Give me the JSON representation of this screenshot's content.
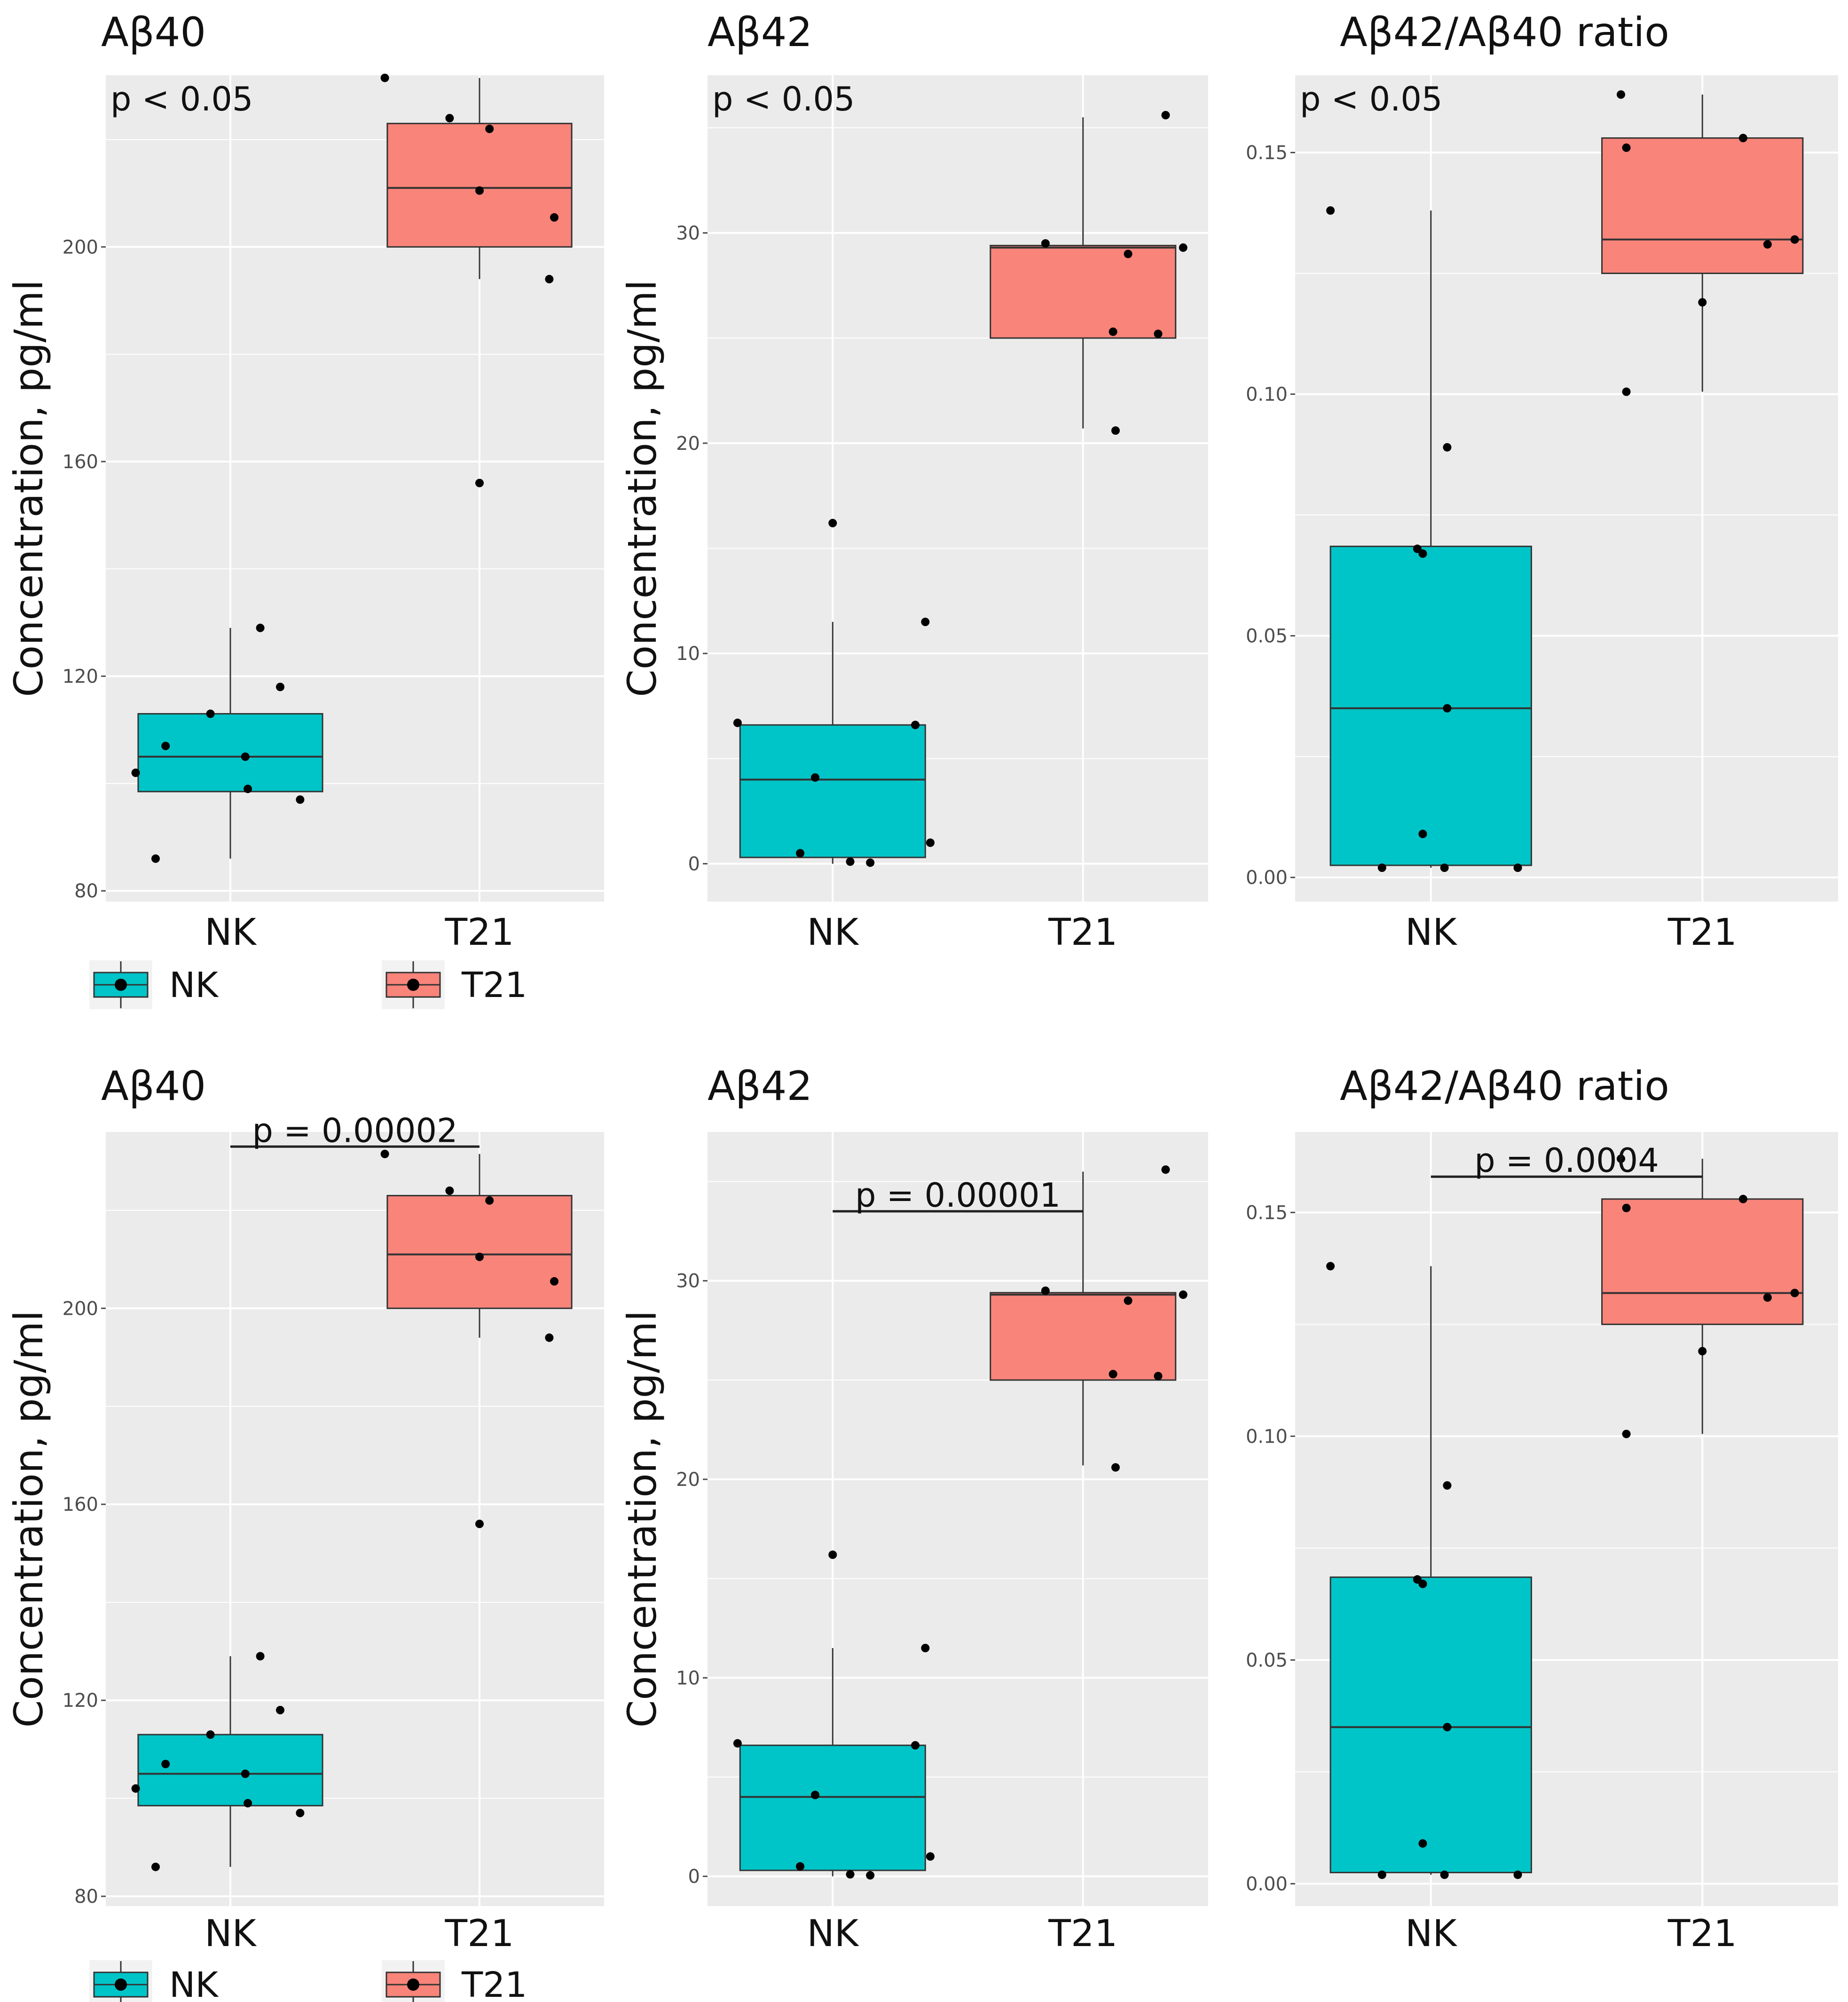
{
  "groups": [
    "NK",
    "T21"
  ],
  "colors": {
    "NK": "#00C5C8",
    "T21": "#F8847A",
    "panel": "#EBEBEB",
    "grid": "#FFFFFF",
    "point": "#000000",
    "line": "#333333"
  },
  "ylabel": "Concentration, pg/ml",
  "legend": [
    {
      "label": "NK",
      "color": "#00C5C8"
    },
    {
      "label": "T21",
      "color": "#F8847A"
    }
  ],
  "chart_data": [
    {
      "type": "boxplot",
      "row": 0,
      "title": "Aβ40",
      "ylabel": "Concentration, pg/ml",
      "annotation": {
        "text": "p < 0.05",
        "style": "corner"
      },
      "ylim": [
        78,
        232
      ],
      "yticks": [
        80,
        120,
        160,
        200
      ],
      "ytick_labels": [
        "80",
        "120",
        "160",
        "200"
      ],
      "categories": [
        "NK",
        "T21"
      ],
      "boxes": [
        {
          "group": "NK",
          "q1": 98.5,
          "median": 105,
          "q3": 113,
          "whisker_low": 86,
          "whisker_high": 129
        },
        {
          "group": "T21",
          "q1": 200,
          "median": 211,
          "q3": 223,
          "whisker_low": 194,
          "whisker_high": 231.5
        }
      ],
      "points": [
        {
          "group": "NK",
          "jitter": -0.38,
          "value": 102
        },
        {
          "group": "NK",
          "jitter": -0.3,
          "value": 86
        },
        {
          "group": "NK",
          "jitter": -0.26,
          "value": 107
        },
        {
          "group": "NK",
          "jitter": -0.08,
          "value": 113
        },
        {
          "group": "NK",
          "jitter": 0.06,
          "value": 105
        },
        {
          "group": "NK",
          "jitter": 0.07,
          "value": 99
        },
        {
          "group": "NK",
          "jitter": 0.12,
          "value": 129
        },
        {
          "group": "NK",
          "jitter": 0.2,
          "value": 118
        },
        {
          "group": "NK",
          "jitter": 0.28,
          "value": 97
        },
        {
          "group": "T21",
          "jitter": -0.38,
          "value": 231.5
        },
        {
          "group": "T21",
          "jitter": -0.12,
          "value": 224
        },
        {
          "group": "T21",
          "jitter": 0.0,
          "value": 210.5
        },
        {
          "group": "T21",
          "jitter": 0.0,
          "value": 156
        },
        {
          "group": "T21",
          "jitter": 0.04,
          "value": 222
        },
        {
          "group": "T21",
          "jitter": 0.28,
          "value": 194
        },
        {
          "group": "T21",
          "jitter": 0.3,
          "value": 205.5
        }
      ]
    },
    {
      "type": "boxplot",
      "row": 0,
      "title": "Aβ42",
      "ylabel": "Concentration, pg/ml",
      "annotation": {
        "text": "p < 0.05",
        "style": "corner"
      },
      "ylim": [
        -1.8,
        37.5
      ],
      "yticks": [
        0,
        10,
        20,
        30
      ],
      "ytick_labels": [
        "0",
        "10",
        "20",
        "30"
      ],
      "categories": [
        "NK",
        "T21"
      ],
      "boxes": [
        {
          "group": "NK",
          "q1": 0.3,
          "median": 4.0,
          "q3": 6.6,
          "whisker_low": 0,
          "whisker_high": 11.5
        },
        {
          "group": "T21",
          "q1": 25.0,
          "median": 29.3,
          "q3": 29.4,
          "whisker_low": 20.7,
          "whisker_high": 35.5
        }
      ],
      "points": [
        {
          "group": "NK",
          "jitter": -0.38,
          "value": 6.7
        },
        {
          "group": "NK",
          "jitter": -0.13,
          "value": 0.5
        },
        {
          "group": "NK",
          "jitter": -0.07,
          "value": 4.1
        },
        {
          "group": "NK",
          "jitter": 0.0,
          "value": 16.2
        },
        {
          "group": "NK",
          "jitter": 0.07,
          "value": 0.1
        },
        {
          "group": "NK",
          "jitter": 0.15,
          "value": 0.05
        },
        {
          "group": "NK",
          "jitter": 0.33,
          "value": 6.6
        },
        {
          "group": "NK",
          "jitter": 0.37,
          "value": 11.5
        },
        {
          "group": "NK",
          "jitter": 0.39,
          "value": 1.0
        },
        {
          "group": "T21",
          "jitter": -0.15,
          "value": 29.5
        },
        {
          "group": "T21",
          "jitter": 0.12,
          "value": 25.3
        },
        {
          "group": "T21",
          "jitter": 0.13,
          "value": 20.6
        },
        {
          "group": "T21",
          "jitter": 0.18,
          "value": 29.0
        },
        {
          "group": "T21",
          "jitter": 0.3,
          "value": 25.2
        },
        {
          "group": "T21",
          "jitter": 0.33,
          "value": 35.6
        },
        {
          "group": "T21",
          "jitter": 0.4,
          "value": 29.3
        }
      ]
    },
    {
      "type": "boxplot",
      "row": 0,
      "title": "Aβ42/Aβ40 ratio",
      "ylabel": "",
      "annotation": {
        "text": "p < 0.05",
        "style": "corner"
      },
      "ylim": [
        -0.005,
        0.166
      ],
      "yticks": [
        0.0,
        0.05,
        0.1,
        0.15
      ],
      "ytick_labels": [
        "0.00",
        "0.05",
        "0.10",
        "0.15"
      ],
      "categories": [
        "NK",
        "T21"
      ],
      "boxes": [
        {
          "group": "NK",
          "q1": 0.0025,
          "median": 0.035,
          "q3": 0.0685,
          "whisker_low": 0.002,
          "whisker_high": 0.138
        },
        {
          "group": "T21",
          "q1": 0.125,
          "median": 0.132,
          "q3": 0.153,
          "whisker_low": 0.1005,
          "whisker_high": 0.162
        }
      ],
      "points": [
        {
          "group": "NK",
          "jitter": -0.37,
          "value": 0.138
        },
        {
          "group": "NK",
          "jitter": -0.18,
          "value": 0.002
        },
        {
          "group": "NK",
          "jitter": -0.05,
          "value": 0.068
        },
        {
          "group": "NK",
          "jitter": -0.03,
          "value": 0.067
        },
        {
          "group": "NK",
          "jitter": -0.03,
          "value": 0.009
        },
        {
          "group": "NK",
          "jitter": 0.05,
          "value": 0.002
        },
        {
          "group": "NK",
          "jitter": 0.06,
          "value": 0.089
        },
        {
          "group": "NK",
          "jitter": 0.06,
          "value": 0.035
        },
        {
          "group": "NK",
          "jitter": 0.32,
          "value": 0.002
        },
        {
          "group": "T21",
          "jitter": -0.3,
          "value": 0.162
        },
        {
          "group": "T21",
          "jitter": -0.28,
          "value": 0.1005
        },
        {
          "group": "T21",
          "jitter": -0.28,
          "value": 0.151
        },
        {
          "group": "T21",
          "jitter": 0.0,
          "value": 0.119
        },
        {
          "group": "T21",
          "jitter": 0.15,
          "value": 0.153
        },
        {
          "group": "T21",
          "jitter": 0.24,
          "value": 0.131
        },
        {
          "group": "T21",
          "jitter": 0.34,
          "value": 0.132
        }
      ]
    },
    {
      "type": "boxplot",
      "row": 1,
      "title": "Aβ40",
      "ylabel": "Concentration, pg/ml",
      "annotation": {
        "text": "p = 0.00002",
        "style": "bracket",
        "level": 233
      },
      "ylim": [
        78,
        236
      ],
      "yticks": [
        80,
        120,
        160,
        200
      ],
      "ytick_labels": [
        "80",
        "120",
        "160",
        "200"
      ],
      "categories": [
        "NK",
        "T21"
      ],
      "boxes": [
        {
          "group": "NK",
          "q1": 98.5,
          "median": 105,
          "q3": 113,
          "whisker_low": 86,
          "whisker_high": 129
        },
        {
          "group": "T21",
          "q1": 200,
          "median": 211,
          "q3": 223,
          "whisker_low": 194,
          "whisker_high": 231.5
        }
      ],
      "points": [
        {
          "group": "NK",
          "jitter": -0.38,
          "value": 102
        },
        {
          "group": "NK",
          "jitter": -0.3,
          "value": 86
        },
        {
          "group": "NK",
          "jitter": -0.26,
          "value": 107
        },
        {
          "group": "NK",
          "jitter": -0.08,
          "value": 113
        },
        {
          "group": "NK",
          "jitter": 0.06,
          "value": 105
        },
        {
          "group": "NK",
          "jitter": 0.07,
          "value": 99
        },
        {
          "group": "NK",
          "jitter": 0.12,
          "value": 129
        },
        {
          "group": "NK",
          "jitter": 0.2,
          "value": 118
        },
        {
          "group": "NK",
          "jitter": 0.28,
          "value": 97
        },
        {
          "group": "T21",
          "jitter": -0.38,
          "value": 231.5
        },
        {
          "group": "T21",
          "jitter": -0.12,
          "value": 224
        },
        {
          "group": "T21",
          "jitter": 0.0,
          "value": 210.5
        },
        {
          "group": "T21",
          "jitter": 0.0,
          "value": 156
        },
        {
          "group": "T21",
          "jitter": 0.04,
          "value": 222
        },
        {
          "group": "T21",
          "jitter": 0.28,
          "value": 194
        },
        {
          "group": "T21",
          "jitter": 0.3,
          "value": 205.5
        }
      ]
    },
    {
      "type": "boxplot",
      "row": 1,
      "title": "Aβ42",
      "ylabel": "Concentration, pg/ml",
      "annotation": {
        "text": "p = 0.00001",
        "style": "bracket",
        "level": 33.5
      },
      "ylim": [
        -1.5,
        37.5
      ],
      "yticks": [
        0,
        10,
        20,
        30
      ],
      "ytick_labels": [
        "0",
        "10",
        "20",
        "30"
      ],
      "categories": [
        "NK",
        "T21"
      ],
      "boxes": [
        {
          "group": "NK",
          "q1": 0.3,
          "median": 4.0,
          "q3": 6.6,
          "whisker_low": 0,
          "whisker_high": 11.5
        },
        {
          "group": "T21",
          "q1": 25.0,
          "median": 29.3,
          "q3": 29.4,
          "whisker_low": 20.7,
          "whisker_high": 35.5
        }
      ],
      "points": [
        {
          "group": "NK",
          "jitter": -0.38,
          "value": 6.7
        },
        {
          "group": "NK",
          "jitter": -0.13,
          "value": 0.5
        },
        {
          "group": "NK",
          "jitter": -0.07,
          "value": 4.1
        },
        {
          "group": "NK",
          "jitter": 0.0,
          "value": 16.2
        },
        {
          "group": "NK",
          "jitter": 0.07,
          "value": 0.1
        },
        {
          "group": "NK",
          "jitter": 0.15,
          "value": 0.05
        },
        {
          "group": "NK",
          "jitter": 0.33,
          "value": 6.6
        },
        {
          "group": "NK",
          "jitter": 0.37,
          "value": 11.5
        },
        {
          "group": "NK",
          "jitter": 0.39,
          "value": 1.0
        },
        {
          "group": "T21",
          "jitter": -0.15,
          "value": 29.5
        },
        {
          "group": "T21",
          "jitter": 0.12,
          "value": 25.3
        },
        {
          "group": "T21",
          "jitter": 0.13,
          "value": 20.6
        },
        {
          "group": "T21",
          "jitter": 0.18,
          "value": 29.0
        },
        {
          "group": "T21",
          "jitter": 0.3,
          "value": 25.2
        },
        {
          "group": "T21",
          "jitter": 0.33,
          "value": 35.6
        },
        {
          "group": "T21",
          "jitter": 0.4,
          "value": 29.3
        }
      ]
    },
    {
      "type": "boxplot",
      "row": 1,
      "title": "Aβ42/Aβ40 ratio",
      "ylabel": "",
      "annotation": {
        "text": "p = 0.0004",
        "style": "bracket",
        "level": 0.158
      },
      "ylim": [
        -0.005,
        0.168
      ],
      "yticks": [
        0.0,
        0.05,
        0.1,
        0.15
      ],
      "ytick_labels": [
        "0.00",
        "0.05",
        "0.10",
        "0.15"
      ],
      "categories": [
        "NK",
        "T21"
      ],
      "boxes": [
        {
          "group": "NK",
          "q1": 0.0025,
          "median": 0.035,
          "q3": 0.0685,
          "whisker_low": 0.002,
          "whisker_high": 0.138
        },
        {
          "group": "T21",
          "q1": 0.125,
          "median": 0.132,
          "q3": 0.153,
          "whisker_low": 0.1005,
          "whisker_high": 0.162
        }
      ],
      "points": [
        {
          "group": "NK",
          "jitter": -0.37,
          "value": 0.138
        },
        {
          "group": "NK",
          "jitter": -0.18,
          "value": 0.002
        },
        {
          "group": "NK",
          "jitter": -0.05,
          "value": 0.068
        },
        {
          "group": "NK",
          "jitter": -0.03,
          "value": 0.067
        },
        {
          "group": "NK",
          "jitter": -0.03,
          "value": 0.009
        },
        {
          "group": "NK",
          "jitter": 0.05,
          "value": 0.002
        },
        {
          "group": "NK",
          "jitter": 0.06,
          "value": 0.089
        },
        {
          "group": "NK",
          "jitter": 0.06,
          "value": 0.035
        },
        {
          "group": "NK",
          "jitter": 0.32,
          "value": 0.002
        },
        {
          "group": "T21",
          "jitter": -0.3,
          "value": 0.162
        },
        {
          "group": "T21",
          "jitter": -0.28,
          "value": 0.1005
        },
        {
          "group": "T21",
          "jitter": -0.28,
          "value": 0.151
        },
        {
          "group": "T21",
          "jitter": 0.0,
          "value": 0.119
        },
        {
          "group": "T21",
          "jitter": 0.15,
          "value": 0.153
        },
        {
          "group": "T21",
          "jitter": 0.24,
          "value": 0.131
        },
        {
          "group": "T21",
          "jitter": 0.34,
          "value": 0.132
        }
      ]
    }
  ]
}
